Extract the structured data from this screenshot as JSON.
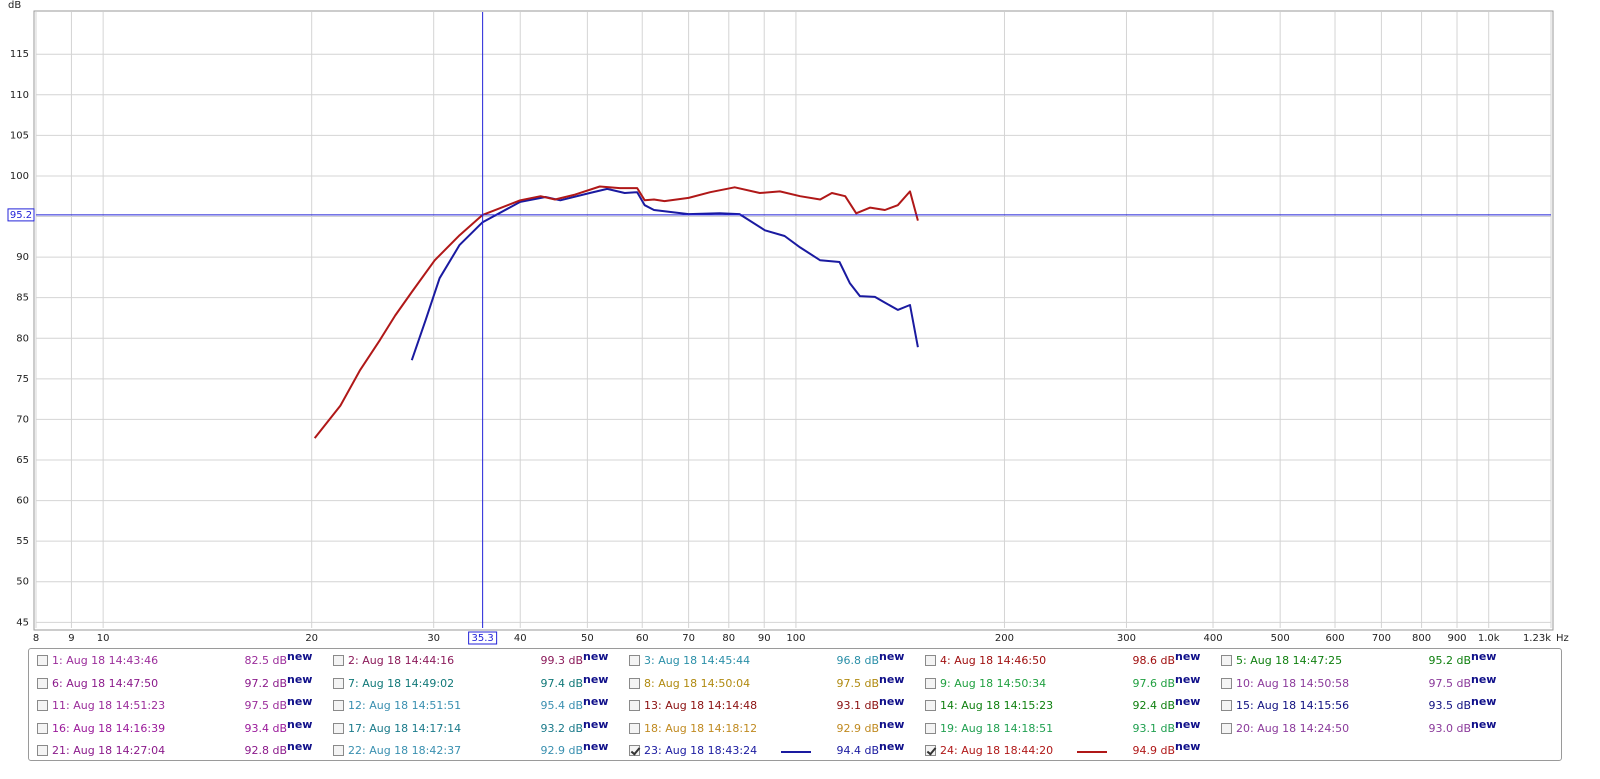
{
  "chart_data": {
    "type": "line",
    "y_unit": "dB",
    "x_unit": "Hz",
    "xscale": "log",
    "grid": true,
    "xlim": [
      8,
      1230
    ],
    "ylim": [
      44.3,
      120.2
    ],
    "xticks": [
      8,
      9,
      10,
      20,
      30,
      40,
      50,
      60,
      70,
      80,
      90,
      100,
      200,
      300,
      400,
      500,
      600,
      700,
      800,
      900,
      {
        "value": 1000,
        "label": "1.0k"
      },
      {
        "value": 1230,
        "label": "1.23k"
      }
    ],
    "yticks": [
      45,
      50,
      55,
      60,
      65,
      70,
      75,
      80,
      85,
      90,
      95,
      100,
      105,
      110,
      115
    ],
    "cursor_x": 35.3,
    "cursor_y": 95.2,
    "cursor_color": "#2323d8",
    "series": [
      {
        "color": "#1a1aa0",
        "x": [
          27.9,
          29.2,
          30.6,
          32.7,
          35.3,
          40,
          43.5,
          45.7,
          50.4,
          53.4,
          56.6,
          59.0,
          60.5,
          62.4,
          70,
          77.6,
          82.9,
          90.2,
          96.3,
          101.4,
          108.4,
          115.6,
          119.6,
          123.7,
          130.0,
          134.4,
          140.3,
          146.1,
          150.0
        ],
        "values": [
          77.3,
          82.2,
          87.4,
          91.5,
          94.3,
          96.8,
          97.4,
          97.0,
          97.9,
          98.4,
          97.9,
          98.0,
          96.4,
          95.8,
          95.3,
          95.4,
          95.3,
          93.3,
          92.6,
          91.2,
          89.6,
          89.4,
          86.8,
          85.2,
          85.1,
          84.4,
          83.5,
          84.1,
          78.9
        ]
      },
      {
        "color": "#b01818",
        "x": [
          20.2,
          22.0,
          23.5,
          25.1,
          26.4,
          27.9,
          30.1,
          32.7,
          35.3,
          40,
          42.8,
          44.9,
          48.0,
          52.1,
          55.7,
          59.0,
          60.5,
          62.4,
          64.6,
          70,
          75.2,
          81.6,
          88.7,
          94.8,
          101.4,
          108.4,
          112.7,
          117.8,
          122.2,
          128.0,
          134.4,
          140.3,
          146.1,
          150.0
        ],
        "values": [
          67.7,
          71.7,
          76.1,
          79.8,
          82.8,
          85.7,
          89.6,
          92.7,
          95.2,
          97.0,
          97.5,
          97.1,
          97.7,
          98.7,
          98.5,
          98.5,
          97.0,
          97.1,
          96.9,
          97.3,
          98.0,
          98.6,
          97.9,
          98.1,
          97.5,
          97.1,
          97.9,
          97.5,
          95.4,
          96.1,
          95.8,
          96.4,
          98.1,
          94.5
        ]
      }
    ]
  },
  "measurements": [
    {
      "label": "1: Aug 18 14:43:46",
      "level": "82.5 dB",
      "tag": "new",
      "color": "#9b2d9b",
      "checked": false
    },
    {
      "label": "2: Aug 18 14:44:16",
      "level": "99.3 dB",
      "tag": "new",
      "color": "#8b1a5a",
      "checked": false
    },
    {
      "label": "3: Aug 18 14:45:44",
      "level": "96.8 dB",
      "tag": "new",
      "color": "#2a8fa8",
      "checked": false
    },
    {
      "label": "4: Aug 18 14:46:50",
      "level": "98.6 dB",
      "tag": "new",
      "color": "#a01010",
      "checked": false
    },
    {
      "label": "5: Aug 18 14:47:25",
      "level": "95.2 dB",
      "tag": "new",
      "color": "#108010",
      "checked": false
    },
    {
      "label": "6: Aug 18 14:47:50",
      "level": "97.2 dB",
      "tag": "new",
      "color": "#8b1a8b",
      "checked": false
    },
    {
      "label": "7: Aug 18 14:49:02",
      "level": "97.4 dB",
      "tag": "new",
      "color": "#107878",
      "checked": false
    },
    {
      "label": "8: Aug 18 14:50:04",
      "level": "97.5 dB",
      "tag": "new",
      "color": "#b08a10",
      "checked": false
    },
    {
      "label": "9: Aug 18 14:50:34",
      "level": "97.6 dB",
      "tag": "new",
      "color": "#20a040",
      "checked": false
    },
    {
      "label": "10: Aug 18 14:50:58",
      "level": "97.5 dB",
      "tag": "new",
      "color": "#8b3a9b",
      "checked": false
    },
    {
      "label": "11: Aug 18 14:51:23",
      "level": "97.5 dB",
      "tag": "new",
      "color": "#9b2d9b",
      "checked": false
    },
    {
      "label": "12: Aug 18 14:51:51",
      "level": "95.4 dB",
      "tag": "new",
      "color": "#3a8fb0",
      "checked": false
    },
    {
      "label": "13: Aug 18 14:14:48",
      "level": "93.1 dB",
      "tag": "new",
      "color": "#8b1010",
      "checked": false
    },
    {
      "label": "14: Aug 18 14:15:23",
      "level": "92.4 dB",
      "tag": "new",
      "color": "#108010",
      "checked": false
    },
    {
      "label": "15: Aug 18 14:15:56",
      "level": "93.5 dB",
      "tag": "new",
      "color": "#101080",
      "checked": false
    },
    {
      "label": "16: Aug 18 14:16:39",
      "level": "93.4 dB",
      "tag": "new",
      "color": "#9b1a9b",
      "checked": false
    },
    {
      "label": "17: Aug 18 14:17:14",
      "level": "93.2 dB",
      "tag": "new",
      "color": "#1a7a8a",
      "checked": false
    },
    {
      "label": "18: Aug 18 14:18:12",
      "level": "92.9 dB",
      "tag": "new",
      "color": "#c08a20",
      "checked": false
    },
    {
      "label": "19: Aug 18 14:18:51",
      "level": "93.1 dB",
      "tag": "new",
      "color": "#20a050",
      "checked": false
    },
    {
      "label": "20: Aug 18 14:24:50",
      "level": "93.0 dB",
      "tag": "new",
      "color": "#8b3a9b",
      "checked": false
    },
    {
      "label": "21: Aug 18 14:27:04",
      "level": "92.8 dB",
      "tag": "new",
      "color": "#8b1a8b",
      "checked": false
    },
    {
      "label": "22: Aug 18 18:42:37",
      "level": "92.9 dB",
      "tag": "new",
      "color": "#3a90b0",
      "checked": false
    },
    {
      "label": "23: Aug 18 18:43:24",
      "level": "94.4 dB",
      "tag": "new",
      "color": "#1a1aa0",
      "checked": true
    },
    {
      "label": "24: Aug 18 18:44:20",
      "level": "94.9 dB",
      "tag": "new",
      "color": "#b01818",
      "checked": true
    }
  ]
}
